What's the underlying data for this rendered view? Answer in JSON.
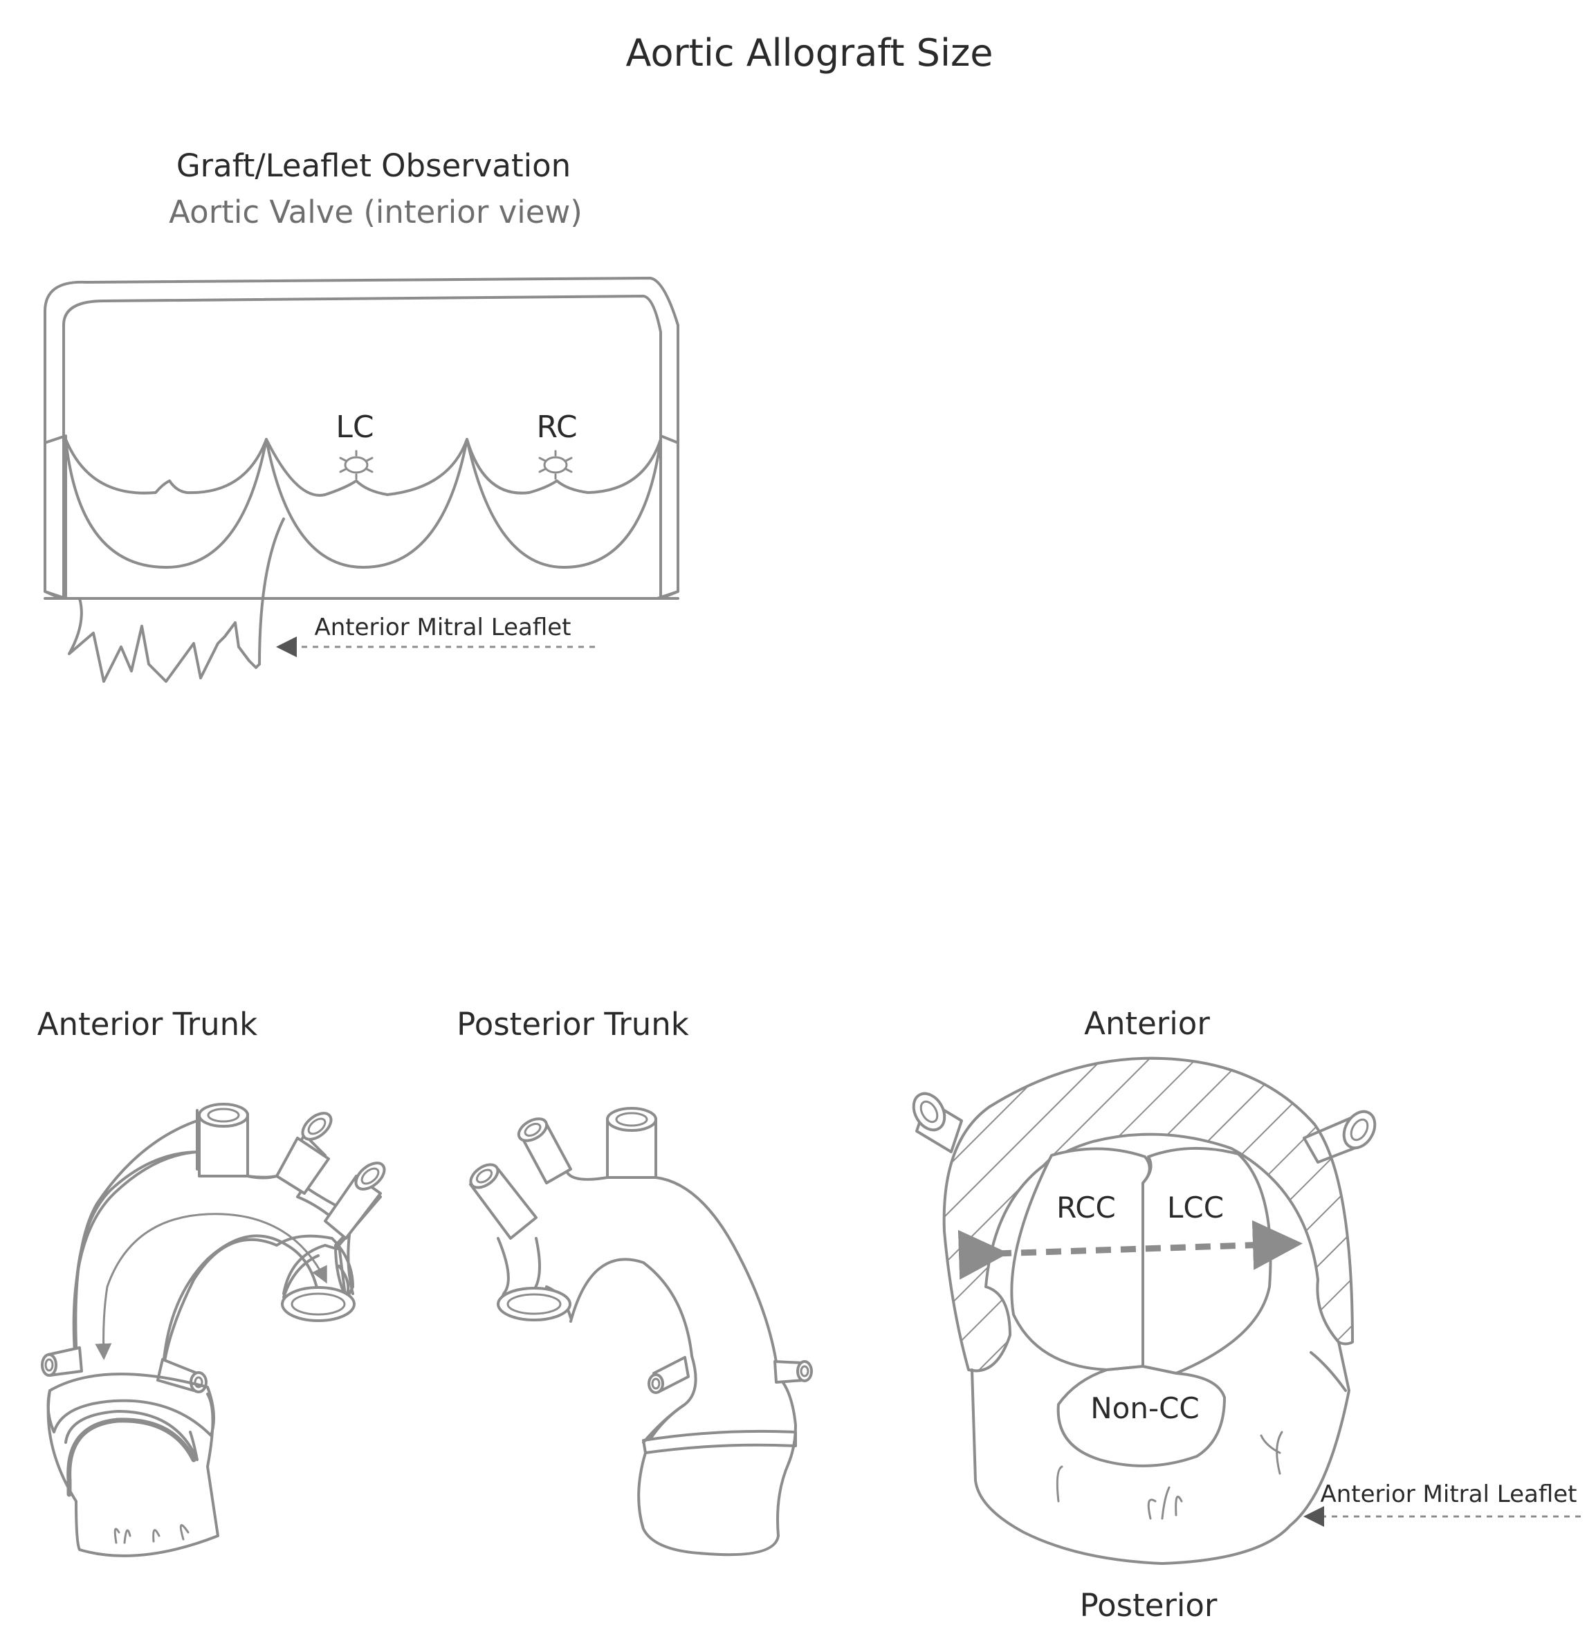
{
  "title": "Aortic Allograft Size",
  "graft_panel": {
    "heading": "Graft/Leaflet Observation",
    "subheading": "Aortic Valve (interior view)",
    "label_lc": "LC",
    "label_rc": "RC",
    "label_mitral": "Anterior Mitral Leaflet"
  },
  "anterior_trunk": {
    "heading": "Anterior Trunk"
  },
  "posterior_trunk": {
    "heading": "Posterior Trunk"
  },
  "annulus_view": {
    "label_top": "Anterior",
    "label_bottom": "Posterior",
    "label_rcc": "RCC",
    "label_lcc": "LCC",
    "label_noncc": "Non-CC",
    "label_mitral": "Anterior Mitral Leaflet"
  },
  "colors": {
    "line": "#8c8c8c",
    "text": "#2a2a2a",
    "text_secondary": "#6e6e6e"
  }
}
